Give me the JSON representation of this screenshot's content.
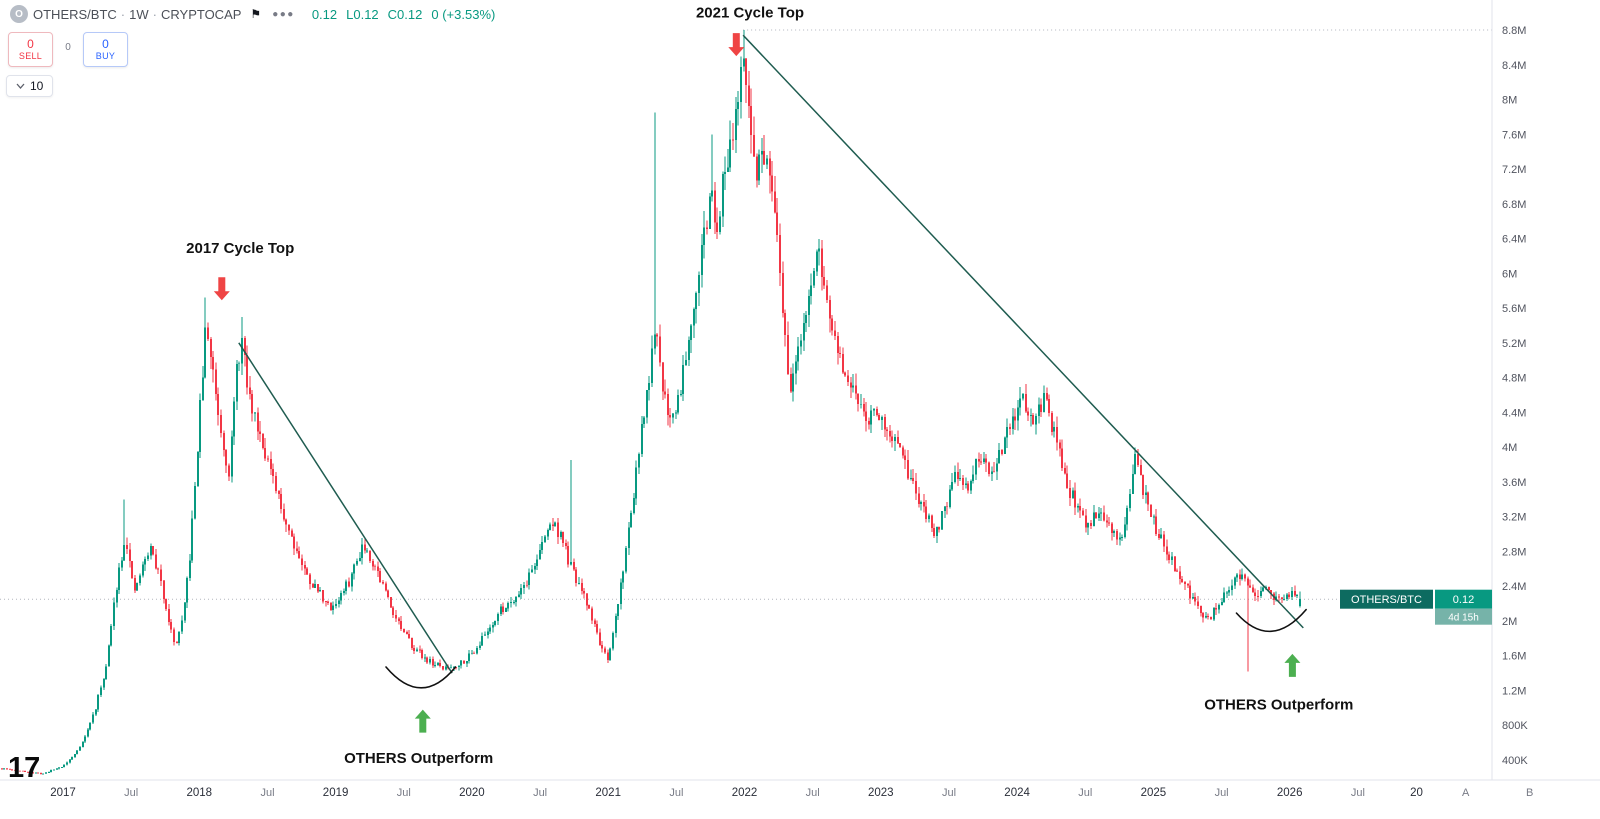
{
  "header": {
    "logo_letter": "O",
    "symbol": "OTHERS/BTC",
    "separator": "·",
    "interval": "1W",
    "exchange": "CRYPTOCAP",
    "more_label": "●●●",
    "quote": [
      "0.12",
      "L0.12",
      "C0.12",
      "0 (+3.53%)"
    ]
  },
  "trade_panel": {
    "sell_count": "0",
    "sell_label": "SELL",
    "spread": "0",
    "buy_count": "0",
    "buy_label": "BUY"
  },
  "toolbar": {
    "dropdown_value": "10"
  },
  "watermark": "17",
  "axis_toggles": {
    "a": "A",
    "b": "B"
  },
  "colors": {
    "up": "#089981",
    "down": "#f23645",
    "trendline": "#1f5c50",
    "arrow_down": "#ef4444",
    "arrow_up": "#4caf50",
    "badge_symbol": "#0d6b60",
    "badge_price": "#089981",
    "badge_countdown": "#76b3a9",
    "accent_sell": "#f23645",
    "accent_buy": "#2962ff"
  },
  "chart_data": {
    "type": "candlestick",
    "symbol": "OTHERS/BTC",
    "interval": "1W",
    "source": "CRYPTOCAP",
    "t_start": 2016.55,
    "t_end": 2026.08,
    "y_ticks": [
      {
        "label": "8.8M",
        "value": 8.8
      },
      {
        "label": "8.4M",
        "value": 8.4
      },
      {
        "label": "8M",
        "value": 8.0
      },
      {
        "label": "7.6M",
        "value": 7.6
      },
      {
        "label": "7.2M",
        "value": 7.2
      },
      {
        "label": "6.8M",
        "value": 6.8
      },
      {
        "label": "6.4M",
        "value": 6.4
      },
      {
        "label": "6M",
        "value": 6.0
      },
      {
        "label": "5.6M",
        "value": 5.6
      },
      {
        "label": "5.2M",
        "value": 5.2
      },
      {
        "label": "4.8M",
        "value": 4.8
      },
      {
        "label": "4.4M",
        "value": 4.4
      },
      {
        "label": "4M",
        "value": 4.0
      },
      {
        "label": "3.6M",
        "value": 3.6
      },
      {
        "label": "3.2M",
        "value": 3.2
      },
      {
        "label": "2.8M",
        "value": 2.8
      },
      {
        "label": "2.4M",
        "value": 2.4
      },
      {
        "label": "2M",
        "value": 2.0
      },
      {
        "label": "1.6M",
        "value": 1.6
      },
      {
        "label": "1.2M",
        "value": 1.2
      },
      {
        "label": "800K",
        "value": 0.8
      },
      {
        "label": "400K",
        "value": 0.4
      }
    ],
    "x_ticks": [
      {
        "label": "2017",
        "t": 2017,
        "major": true
      },
      {
        "label": "Jul",
        "t": 2017.5,
        "major": false
      },
      {
        "label": "2018",
        "t": 2018,
        "major": true
      },
      {
        "label": "Jul",
        "t": 2018.5,
        "major": false
      },
      {
        "label": "2019",
        "t": 2019,
        "major": true
      },
      {
        "label": "Jul",
        "t": 2019.5,
        "major": false
      },
      {
        "label": "2020",
        "t": 2020,
        "major": true
      },
      {
        "label": "Jul",
        "t": 2020.5,
        "major": false
      },
      {
        "label": "2021",
        "t": 2021,
        "major": true
      },
      {
        "label": "Jul",
        "t": 2021.5,
        "major": false
      },
      {
        "label": "2022",
        "t": 2022,
        "major": true
      },
      {
        "label": "Jul",
        "t": 2022.5,
        "major": false
      },
      {
        "label": "2023",
        "t": 2023,
        "major": true
      },
      {
        "label": "Jul",
        "t": 2023.5,
        "major": false
      },
      {
        "label": "2024",
        "t": 2024,
        "major": true
      },
      {
        "label": "Jul",
        "t": 2024.5,
        "major": false
      },
      {
        "label": "2025",
        "t": 2025,
        "major": true
      },
      {
        "label": "Jul",
        "t": 2025.5,
        "major": false
      },
      {
        "label": "2026",
        "t": 2026,
        "major": true
      },
      {
        "label": "Jul",
        "t": 2026.5,
        "major": false
      },
      {
        "label": "20",
        "t": 2026.93,
        "major": true
      }
    ],
    "close_anchors": [
      [
        2016.55,
        0.3
      ],
      [
        2016.7,
        0.27
      ],
      [
        2016.85,
        0.24
      ],
      [
        2017.0,
        0.33
      ],
      [
        2017.08,
        0.45
      ],
      [
        2017.16,
        0.65
      ],
      [
        2017.24,
        1.0
      ],
      [
        2017.32,
        1.5
      ],
      [
        2017.4,
        2.5
      ],
      [
        2017.46,
        3.0
      ],
      [
        2017.52,
        2.3
      ],
      [
        2017.58,
        2.6
      ],
      [
        2017.64,
        2.85
      ],
      [
        2017.7,
        2.55
      ],
      [
        2017.76,
        2.15
      ],
      [
        2017.82,
        1.7
      ],
      [
        2017.88,
        2.0
      ],
      [
        2017.94,
        2.9
      ],
      [
        2018.0,
        4.3
      ],
      [
        2018.05,
        5.4
      ],
      [
        2018.1,
        4.9
      ],
      [
        2018.16,
        4.2
      ],
      [
        2018.22,
        3.7
      ],
      [
        2018.27,
        4.8
      ],
      [
        2018.31,
        5.25
      ],
      [
        2018.36,
        4.6
      ],
      [
        2018.42,
        4.3
      ],
      [
        2018.48,
        4.0
      ],
      [
        2018.54,
        3.6
      ],
      [
        2018.6,
        3.3
      ],
      [
        2018.66,
        3.05
      ],
      [
        2018.72,
        2.8
      ],
      [
        2018.78,
        2.55
      ],
      [
        2018.84,
        2.4
      ],
      [
        2018.9,
        2.3
      ],
      [
        2018.95,
        2.15
      ],
      [
        2019.0,
        2.2
      ],
      [
        2019.1,
        2.45
      ],
      [
        2019.2,
        2.9
      ],
      [
        2019.3,
        2.6
      ],
      [
        2019.4,
        2.2
      ],
      [
        2019.5,
        1.85
      ],
      [
        2019.6,
        1.65
      ],
      [
        2019.7,
        1.52
      ],
      [
        2019.8,
        1.45
      ],
      [
        2019.9,
        1.5
      ],
      [
        2020.0,
        1.62
      ],
      [
        2020.1,
        1.85
      ],
      [
        2020.2,
        2.1
      ],
      [
        2020.3,
        2.25
      ],
      [
        2020.4,
        2.45
      ],
      [
        2020.5,
        2.8
      ],
      [
        2020.58,
        3.15
      ],
      [
        2020.65,
        3.0
      ],
      [
        2020.73,
        2.6
      ],
      [
        2020.8,
        2.35
      ],
      [
        2020.87,
        2.1
      ],
      [
        2020.94,
        1.75
      ],
      [
        2021.0,
        1.5
      ],
      [
        2021.06,
        2.1
      ],
      [
        2021.12,
        2.7
      ],
      [
        2021.18,
        3.4
      ],
      [
        2021.24,
        4.1
      ],
      [
        2021.3,
        4.8
      ],
      [
        2021.35,
        5.3
      ],
      [
        2021.4,
        4.7
      ],
      [
        2021.46,
        4.3
      ],
      [
        2021.52,
        4.6
      ],
      [
        2021.58,
        5.2
      ],
      [
        2021.64,
        5.8
      ],
      [
        2021.7,
        6.4
      ],
      [
        2021.76,
        6.9
      ],
      [
        2021.8,
        6.6
      ],
      [
        2021.85,
        7.1
      ],
      [
        2021.9,
        7.6
      ],
      [
        2021.95,
        8.0
      ],
      [
        2021.99,
        8.3
      ],
      [
        2022.03,
        7.9
      ],
      [
        2022.08,
        7.2
      ],
      [
        2022.13,
        7.35
      ],
      [
        2022.18,
        7.1
      ],
      [
        2022.23,
        6.5
      ],
      [
        2022.28,
        5.6
      ],
      [
        2022.33,
        4.7
      ],
      [
        2022.38,
        4.9
      ],
      [
        2022.44,
        5.5
      ],
      [
        2022.5,
        6.0
      ],
      [
        2022.55,
        6.2
      ],
      [
        2022.6,
        5.7
      ],
      [
        2022.66,
        5.2
      ],
      [
        2022.72,
        4.9
      ],
      [
        2022.78,
        4.65
      ],
      [
        2022.85,
        4.5
      ],
      [
        2022.92,
        4.35
      ],
      [
        2023.0,
        4.4
      ],
      [
        2023.1,
        4.05
      ],
      [
        2023.2,
        3.7
      ],
      [
        2023.3,
        3.3
      ],
      [
        2023.4,
        3.0
      ],
      [
        2023.48,
        3.35
      ],
      [
        2023.56,
        3.7
      ],
      [
        2023.64,
        3.55
      ],
      [
        2023.72,
        3.85
      ],
      [
        2023.8,
        3.7
      ],
      [
        2023.88,
        3.95
      ],
      [
        2023.96,
        4.25
      ],
      [
        2024.05,
        4.55
      ],
      [
        2024.12,
        4.3
      ],
      [
        2024.2,
        4.55
      ],
      [
        2024.28,
        4.1
      ],
      [
        2024.36,
        3.6
      ],
      [
        2024.44,
        3.3
      ],
      [
        2024.52,
        3.1
      ],
      [
        2024.6,
        3.3
      ],
      [
        2024.68,
        3.05
      ],
      [
        2024.76,
        2.95
      ],
      [
        2024.82,
        3.3
      ],
      [
        2024.86,
        3.95
      ],
      [
        2024.92,
        3.5
      ],
      [
        2025.0,
        3.15
      ],
      [
        2025.08,
        2.85
      ],
      [
        2025.16,
        2.6
      ],
      [
        2025.24,
        2.4
      ],
      [
        2025.32,
        2.15
      ],
      [
        2025.4,
        2.0
      ],
      [
        2025.48,
        2.2
      ],
      [
        2025.56,
        2.35
      ],
      [
        2025.64,
        2.55
      ],
      [
        2025.7,
        2.45
      ],
      [
        2025.76,
        2.25
      ],
      [
        2025.82,
        2.35
      ],
      [
        2025.88,
        2.28
      ],
      [
        2025.94,
        2.2
      ],
      [
        2026.0,
        2.32
      ],
      [
        2026.08,
        2.25
      ]
    ],
    "wick_events": [
      {
        "t": 2017.45,
        "type": "high",
        "value": 3.4
      },
      {
        "t": 2018.05,
        "type": "high",
        "value": 5.72
      },
      {
        "t": 2018.31,
        "type": "high",
        "value": 5.5
      },
      {
        "t": 2020.73,
        "type": "high",
        "value": 3.85
      },
      {
        "t": 2021.35,
        "type": "high",
        "value": 7.85
      },
      {
        "t": 2021.76,
        "type": "high",
        "value": 7.6
      },
      {
        "t": 2021.99,
        "type": "high",
        "value": 8.8
      },
      {
        "t": 2022.13,
        "type": "high",
        "value": 7.45
      },
      {
        "t": 2025.7,
        "type": "low",
        "value": 1.42
      }
    ],
    "trendlines": [
      {
        "t1": 2018.29,
        "v1": 5.2,
        "t2": 2019.855,
        "v2": 1.4
      },
      {
        "t1": 2021.99,
        "v1": 8.74,
        "t2": 2026.1,
        "v2": 1.92
      }
    ],
    "dotted_levels": [
      {
        "value": 8.8,
        "t_from": 2021.99
      }
    ],
    "annotations": [
      {
        "type": "text",
        "text": "2017 Cycle Top",
        "t": 2018.3,
        "v": 6.29
      },
      {
        "type": "arrow-down",
        "t": 2018.165,
        "v": 5.69
      },
      {
        "type": "text",
        "text": "2021 Cycle Top",
        "t": 2022.04,
        "v": 9.0
      },
      {
        "type": "arrow-down",
        "t": 2021.94,
        "v": 8.5
      },
      {
        "type": "arc",
        "t1": 2019.37,
        "v1": 1.47,
        "tc": 2019.63,
        "vc": 0.99,
        "t2": 2019.88,
        "v2": 1.47
      },
      {
        "type": "arrow-up",
        "t": 2019.64,
        "v": 0.98
      },
      {
        "type": "text",
        "text": "OTHERS Outperform",
        "t": 2019.61,
        "v": 0.42
      },
      {
        "type": "arc",
        "t1": 2025.61,
        "v1": 2.09,
        "tc": 2025.86,
        "vc": 1.65,
        "t2": 2026.12,
        "v2": 2.13
      },
      {
        "type": "arrow-up",
        "t": 2026.02,
        "v": 1.62
      },
      {
        "type": "text",
        "text": "OTHERS Outperform",
        "t": 2025.92,
        "v": 1.04
      }
    ],
    "last": {
      "label": "OTHERS/BTC",
      "price": "0.12",
      "countdown": "4d 15h",
      "level": 2.25
    }
  }
}
